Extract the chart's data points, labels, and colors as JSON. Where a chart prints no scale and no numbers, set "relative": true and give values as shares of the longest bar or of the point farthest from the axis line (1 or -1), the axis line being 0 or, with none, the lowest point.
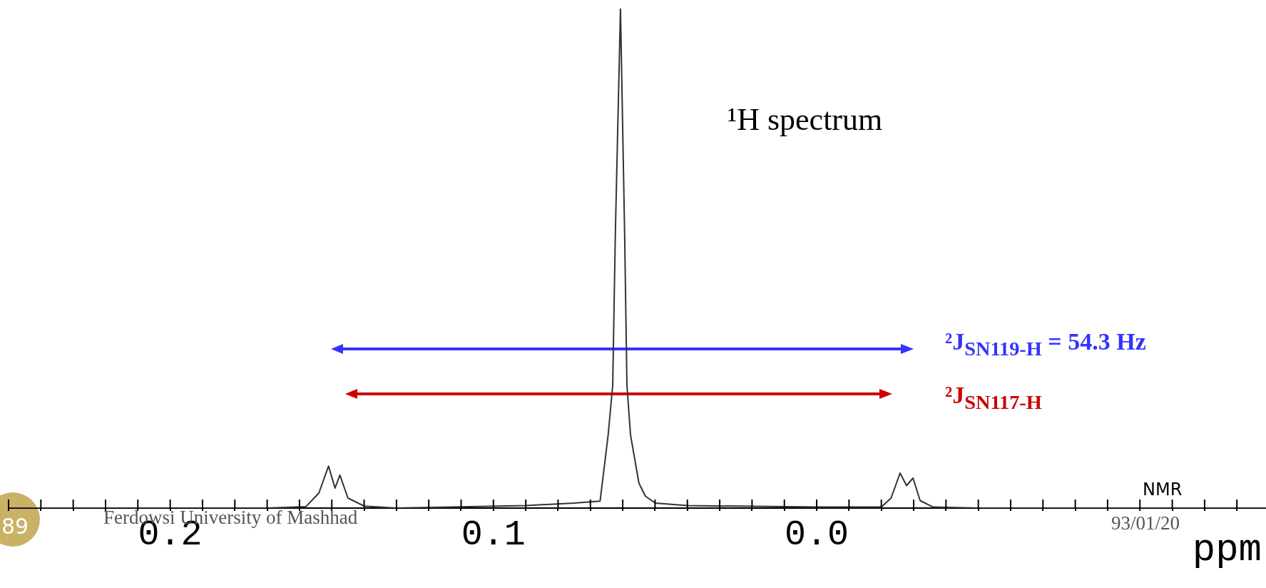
{
  "chart_data": {
    "type": "line",
    "title": "¹H spectrum",
    "xlabel": "ppm",
    "relative": true,
    "marker": "none",
    "xlim": [
      0.25,
      -0.139
    ],
    "xticks": [
      {
        "value": 0.25,
        "label": null
      },
      {
        "value": 0.24,
        "label": null
      },
      {
        "value": 0.23,
        "label": null
      },
      {
        "value": 0.22,
        "label": null
      },
      {
        "value": 0.21,
        "label": null
      },
      {
        "value": 0.2,
        "label": "0.2"
      },
      {
        "value": 0.19,
        "label": null
      },
      {
        "value": 0.18,
        "label": null
      },
      {
        "value": 0.17,
        "label": null
      },
      {
        "value": 0.16,
        "label": null
      },
      {
        "value": 0.15,
        "label": null
      },
      {
        "value": 0.14,
        "label": null
      },
      {
        "value": 0.13,
        "label": null
      },
      {
        "value": 0.12,
        "label": null
      },
      {
        "value": 0.11,
        "label": null
      },
      {
        "value": 0.1,
        "label": "0.1"
      },
      {
        "value": 0.09,
        "label": null
      },
      {
        "value": 0.08,
        "label": null
      },
      {
        "value": 0.07,
        "label": null
      },
      {
        "value": 0.06,
        "label": null
      },
      {
        "value": 0.05,
        "label": null
      },
      {
        "value": 0.04,
        "label": null
      },
      {
        "value": 0.03,
        "label": null
      },
      {
        "value": 0.02,
        "label": null
      },
      {
        "value": 0.01,
        "label": null
      },
      {
        "value": 0,
        "label": "0.0"
      },
      {
        "value": -0.01,
        "label": null
      },
      {
        "value": -0.02,
        "label": null
      },
      {
        "value": -0.03,
        "label": null
      },
      {
        "value": -0.04,
        "label": null
      },
      {
        "value": -0.05,
        "label": null
      },
      {
        "value": -0.06,
        "label": null
      },
      {
        "value": -0.07,
        "label": null
      },
      {
        "value": -0.08,
        "label": null
      },
      {
        "value": -0.09,
        "label": null
      },
      {
        "value": -0.1,
        "label": null
      },
      {
        "value": -0.11,
        "label": null
      },
      {
        "value": -0.12,
        "label": null
      },
      {
        "value": -0.13,
        "label": null
      }
    ],
    "series": [
      {
        "color": "#333333",
        "x": [
          0.25,
          0.17,
          0.158,
          0.154,
          0.151,
          0.149,
          0.1475,
          0.145,
          0.14,
          0.13,
          0.09,
          0.075,
          0.067,
          0.0645,
          0.0631,
          0.0623,
          0.0607,
          0.0594,
          0.0587,
          0.0576,
          0.055,
          0.053,
          0.0499,
          0.04,
          0.0,
          -0.02,
          -0.023,
          -0.0258,
          -0.0278,
          -0.0298,
          -0.032,
          -0.036,
          -0.05,
          -0.139
        ],
        "values": [
          0,
          0,
          0.003,
          0.03,
          0.084,
          0.04,
          0.066,
          0.02,
          0.004,
          0,
          0.005,
          0.01,
          0.014,
          0.147,
          0.246,
          0.545,
          1,
          0.545,
          0.246,
          0.147,
          0.05,
          0.024,
          0.01,
          0.005,
          0.002,
          0.002,
          0.02,
          0.07,
          0.045,
          0.06,
          0.015,
          0.002,
          0,
          0
        ]
      }
    ],
    "annotations": [
      "²J$_{SN119-H}$ = 54.3 Hz",
      "²J$_{SN117-H}$",
      "89",
      "Ferdowsi University of Mashhad",
      "NMR",
      "93/01/20"
    ]
  }
}
